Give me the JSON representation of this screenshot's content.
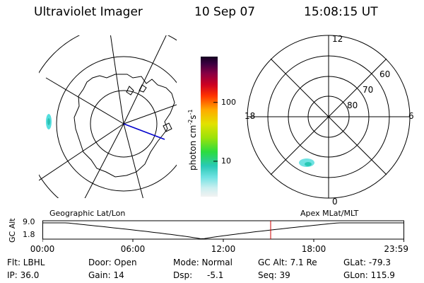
{
  "header": {
    "instrument": "Ultraviolet Imager",
    "date": "10 Sep 07",
    "time": "15:08:15 UT"
  },
  "colorbar": {
    "label": "photon cm",
    "label_sup1": "-2",
    "label_mid": "s",
    "label_sup2": "-1",
    "ticks": [
      {
        "value": 100,
        "text": "100"
      },
      {
        "value": 10,
        "text": "10"
      }
    ],
    "range": [
      2.5,
      600
    ],
    "scale": "log",
    "colors": [
      "#f2f2f2",
      "#6fe2e2",
      "#29c9b5",
      "#2bdc3f",
      "#9be20a",
      "#e2e200",
      "#ffaa00",
      "#ff3300",
      "#cc0022",
      "#660044",
      "#140020"
    ]
  },
  "polar_plot": {
    "lat_labels": [
      "60",
      "70",
      "80"
    ],
    "mlt_labels": {
      "top": "12",
      "right": "6",
      "bottom": "0",
      "left": "18"
    }
  },
  "timeline": {
    "left_title": "Geographic Lat/Lon",
    "right_title": "Apex MLat/MLT",
    "y_axis_label": "GC Alt",
    "y_ticks": [
      "9.0",
      "1.8"
    ],
    "x_ticks": [
      "00:00",
      "06:00",
      "12:00",
      "18:00",
      "23:59"
    ],
    "current_time_hours": 15.14,
    "x_range_hours": [
      0,
      24
    ],
    "y_range": [
      1.8,
      9.0
    ],
    "marker_color": "#cc0000"
  },
  "info": {
    "filter": "Flt: LBHL",
    "ip": "IP: 36.0",
    "door": "Door: Open",
    "gain": "Gain: 14",
    "mode": "Mode: Normal",
    "dsp": "Dsp:",
    "dsp_value": "-5.1",
    "gc_alt": "GC Alt: 7.1 Re",
    "seq": "Seq: 39",
    "glat": "GLat: -79.3",
    "glon": "GLon: 115.9"
  }
}
